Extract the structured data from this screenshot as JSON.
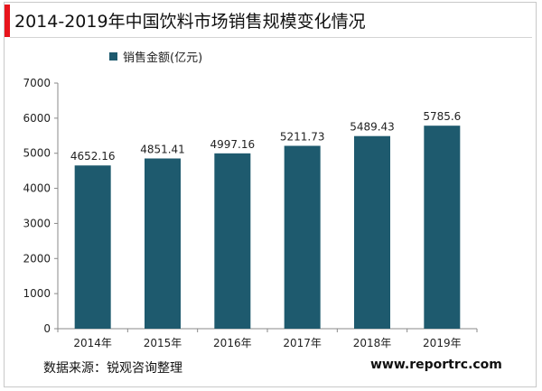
{
  "header": {
    "title": "2014-2019年中国饮料市场销售规模变化情况"
  },
  "footer": {
    "source": "数据来源：锐观咨询整理",
    "url": "www.reportrc.com"
  },
  "colors": {
    "accent": "#e8141c",
    "bar": "#1e5a6e"
  },
  "chart_data": {
    "type": "bar",
    "title": "2014-2019年中国饮料市场销售规模变化情况",
    "xlabel": "",
    "ylabel": "",
    "categories": [
      "2014年",
      "2015年",
      "2016年",
      "2017年",
      "2018年",
      "2019年"
    ],
    "series": [
      {
        "name": "销售金额(亿元)",
        "values": [
          4652.16,
          4851.41,
          4997.16,
          5211.73,
          5489.43,
          5785.6
        ],
        "labels": [
          "4652.16",
          "4851.41",
          "4997.16",
          "5211.73",
          "5489.43",
          "5785.6"
        ]
      }
    ],
    "ylim": [
      0,
      7000
    ],
    "yticks": [
      0,
      1000,
      2000,
      3000,
      4000,
      5000,
      6000,
      7000
    ],
    "grid": false,
    "legend": "top-left"
  }
}
